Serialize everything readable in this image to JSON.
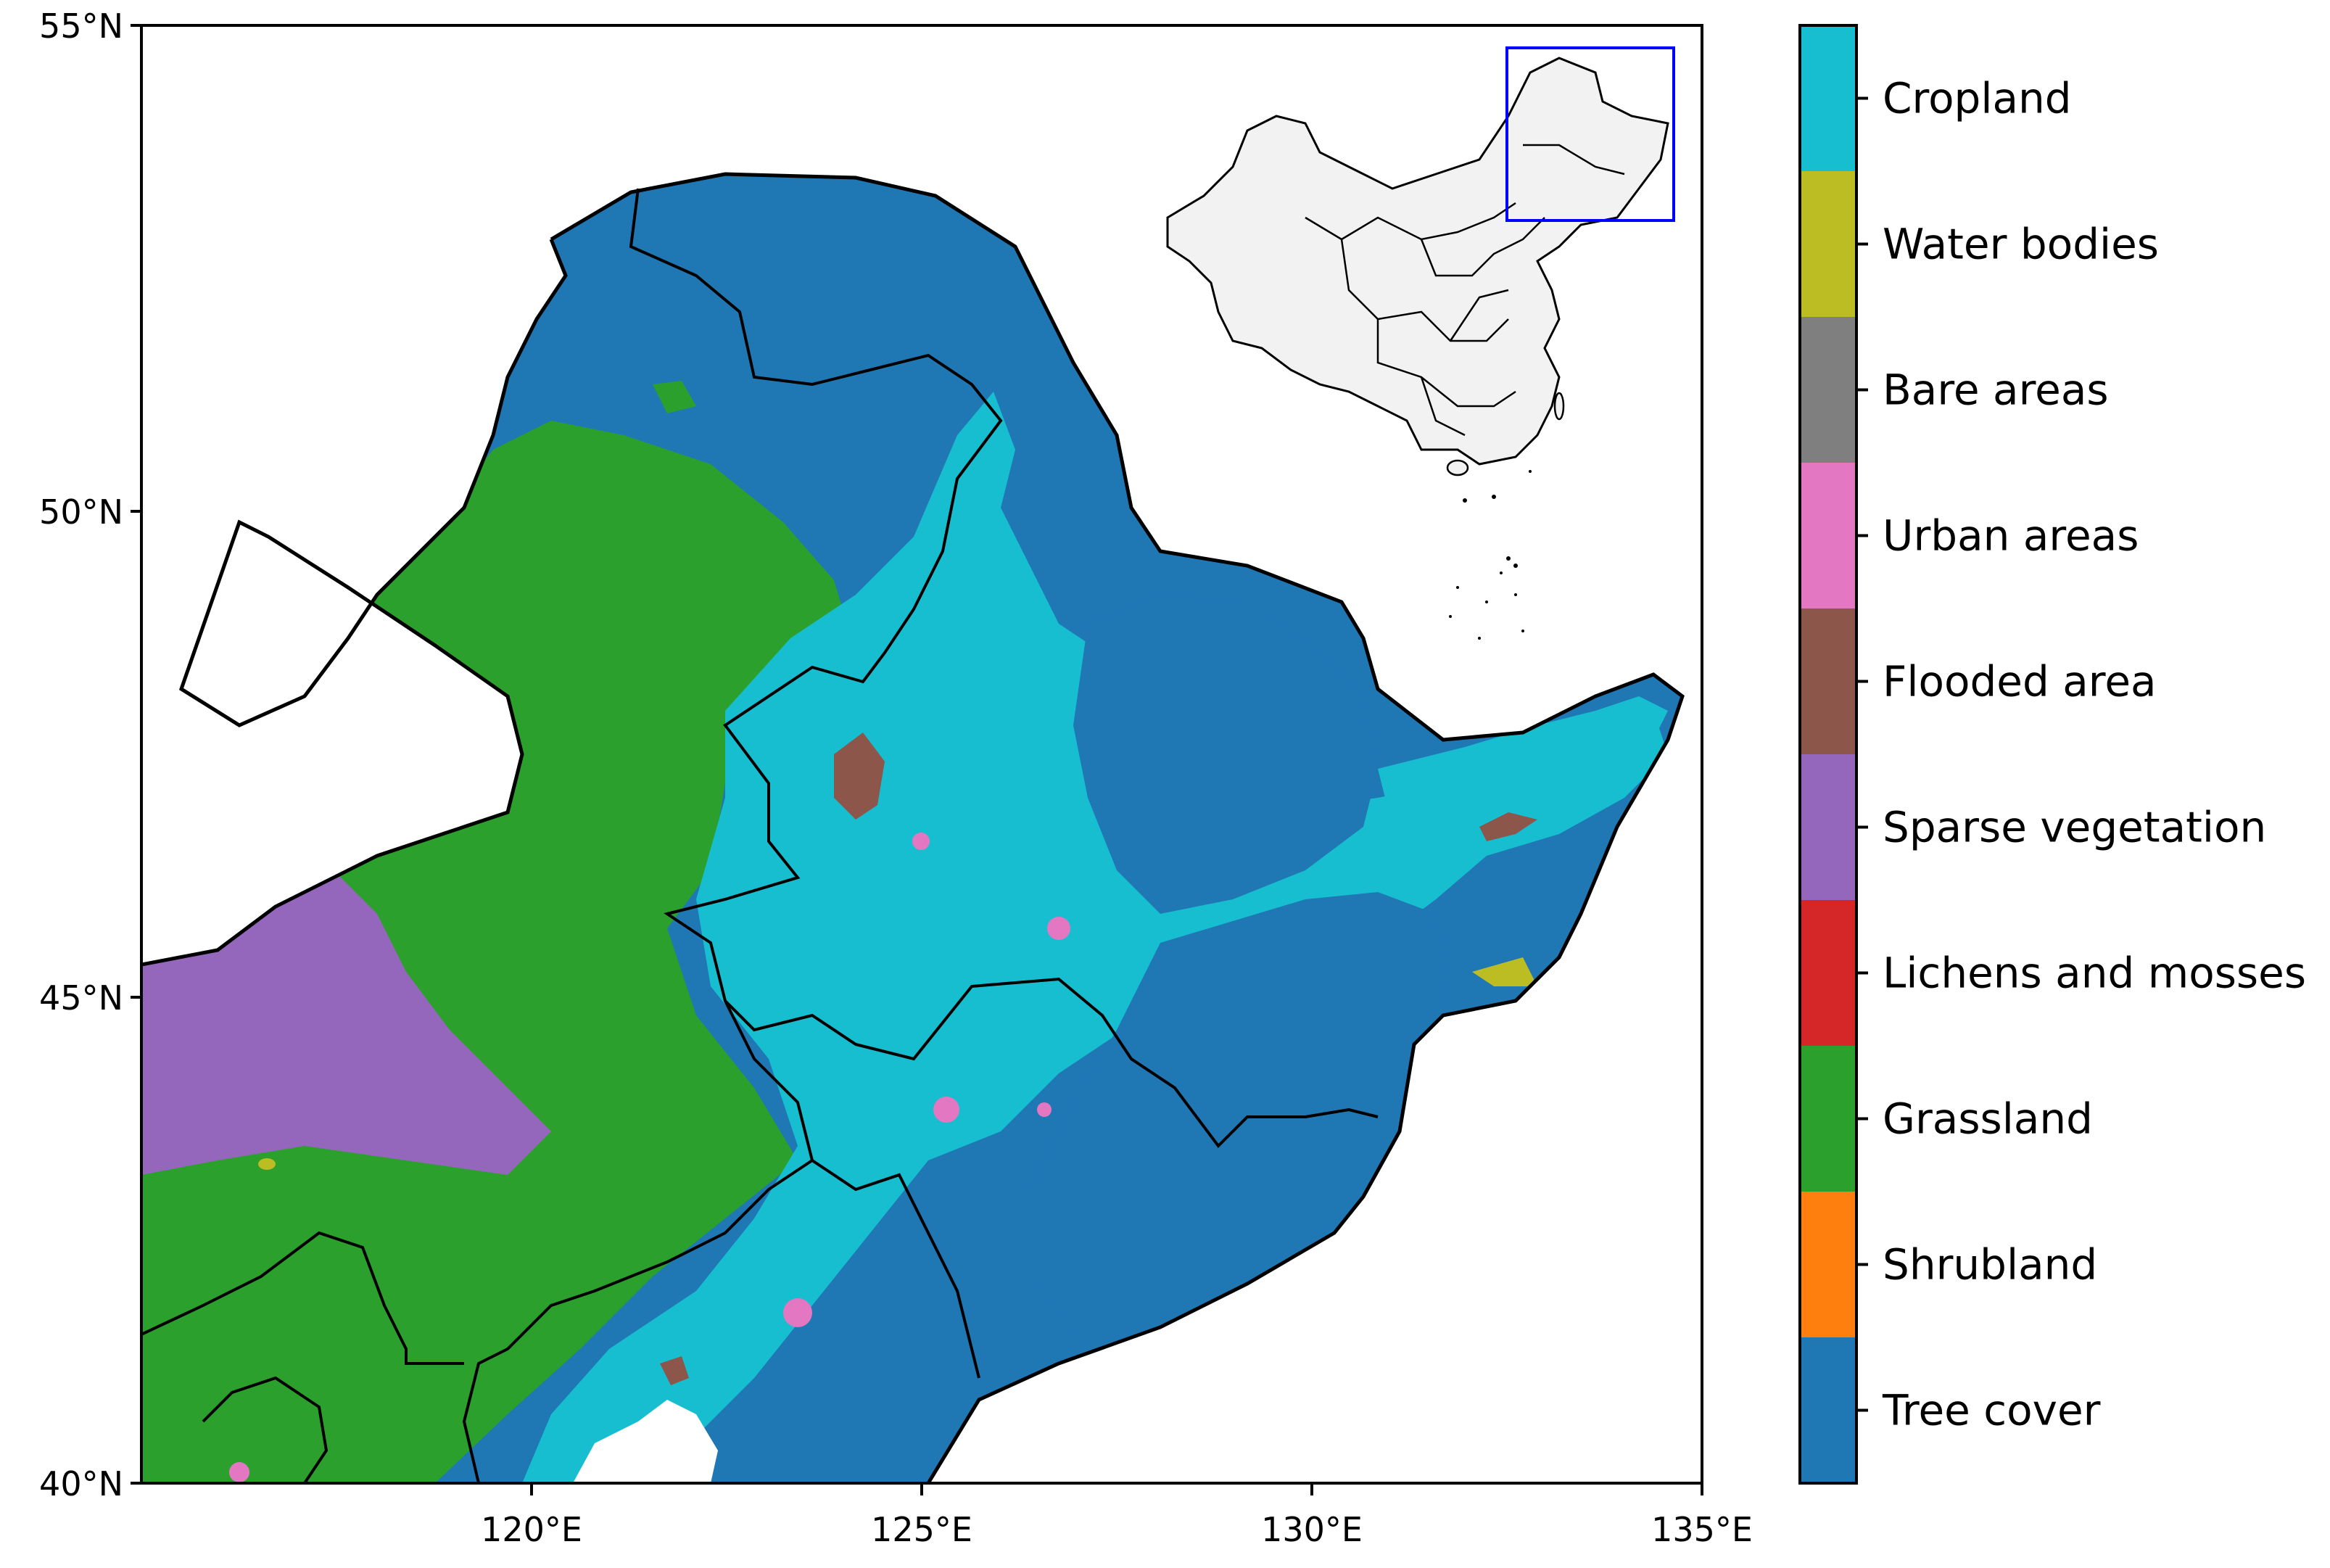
{
  "map": {
    "lat_labels": [
      "55°N",
      "50°N",
      "45°N",
      "40°N"
    ],
    "lon_labels": [
      "120°E",
      "125°E",
      "130°E",
      "135°E"
    ],
    "extent": {
      "lon_min": 115,
      "lon_max": 135,
      "lat_min": 40,
      "lat_max": 55
    },
    "inset": {
      "subject": "China",
      "highlight_color": "#0000ff"
    }
  },
  "legend": {
    "items": [
      {
        "label": "Cropland",
        "color": "#17becf"
      },
      {
        "label": "Water bodies",
        "color": "#bcbd22"
      },
      {
        "label": "Bare areas",
        "color": "#7f7f7f"
      },
      {
        "label": "Urban areas",
        "color": "#e377c2"
      },
      {
        "label": "Flooded area",
        "color": "#8c564b"
      },
      {
        "label": "Sparse vegetation",
        "color": "#9467bd"
      },
      {
        "label": "Lichens and mosses",
        "color": "#d62728"
      },
      {
        "label": "Grassland",
        "color": "#2ca02c"
      },
      {
        "label": "Shrubland",
        "color": "#ff7f0e"
      },
      {
        "label": "Tree cover",
        "color": "#1f77b4"
      }
    ]
  }
}
